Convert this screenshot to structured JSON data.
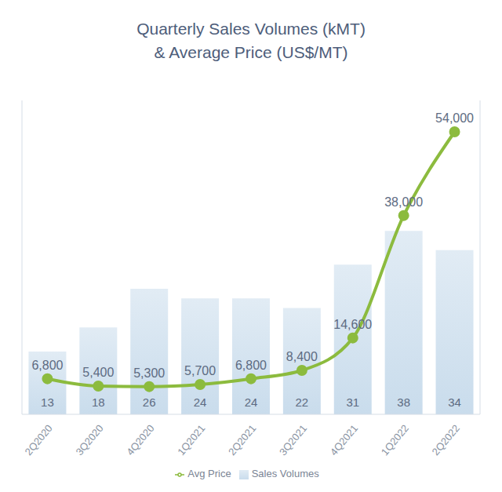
{
  "chart_data": {
    "type": "bar",
    "title": "Quarterly Sales Volumes (kMT)",
    "subtitle": "& Average Price (US$/MT)",
    "categories": [
      "2Q2020",
      "3Q2020",
      "4Q2020",
      "1Q2021",
      "2Q2021",
      "3Q2021",
      "4Q2021",
      "1Q2022",
      "2Q2022"
    ],
    "series": [
      {
        "name": "Sales Volumes",
        "type": "bar",
        "color": "#c9dcec",
        "values": [
          13,
          18,
          26,
          24,
          24,
          22,
          31,
          38,
          34
        ]
      },
      {
        "name": "Avg Price",
        "type": "line",
        "axis": "y2",
        "color": "#8cbb3e",
        "marker": "circle",
        "line_style": "solid",
        "values": [
          6800,
          5400,
          5300,
          5700,
          6800,
          8400,
          14600,
          38000,
          54000
        ],
        "value_labels": [
          "6,800",
          "5,400",
          "5,300",
          "5,700",
          "6,800",
          "8,400",
          "14,600",
          "38,000",
          "54,000"
        ]
      }
    ],
    "ylim": [
      0,
      65
    ],
    "y2lim": [
      0,
      60000
    ],
    "tick_labels": "x",
    "data_labels": true,
    "legend": "bottom",
    "grid": false
  }
}
